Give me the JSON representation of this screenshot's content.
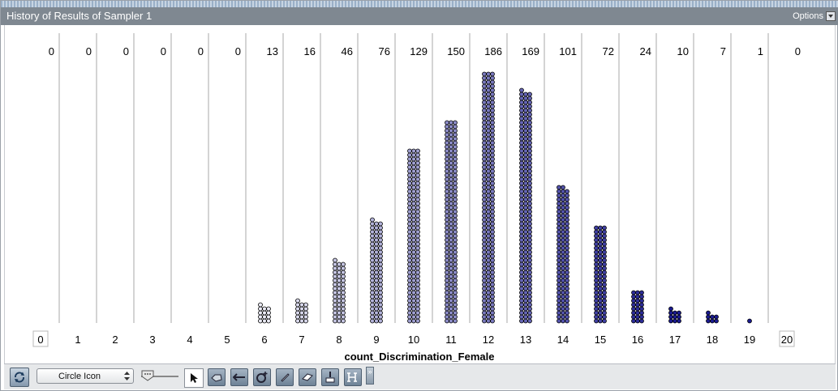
{
  "window": {
    "title": "History of Results of Sampler 1",
    "options_label": "Options"
  },
  "chart_data": {
    "type": "bar",
    "xlabel": "count_Discrimination_Female",
    "categories": [
      "0",
      "1",
      "2",
      "3",
      "4",
      "5",
      "6",
      "7",
      "8",
      "9",
      "10",
      "11",
      "12",
      "13",
      "14",
      "15",
      "16",
      "17",
      "18",
      "19",
      "20"
    ],
    "values": [
      0,
      0,
      0,
      0,
      0,
      0,
      13,
      16,
      46,
      76,
      129,
      150,
      186,
      169,
      101,
      72,
      24,
      10,
      7,
      1,
      0
    ],
    "grid": true,
    "colors": {
      "low": "#ffffff",
      "high": "#1a1a90",
      "stroke": "#000000"
    }
  },
  "toolbar": {
    "icon_select_value": "Circle Icon",
    "tools": [
      "refresh-icon",
      "arrow-icon",
      "hand-icon",
      "separator-icon",
      "plus-icon",
      "pencil-icon",
      "eraser-icon",
      "brush-icon",
      "header-icon",
      "more-icon"
    ]
  }
}
